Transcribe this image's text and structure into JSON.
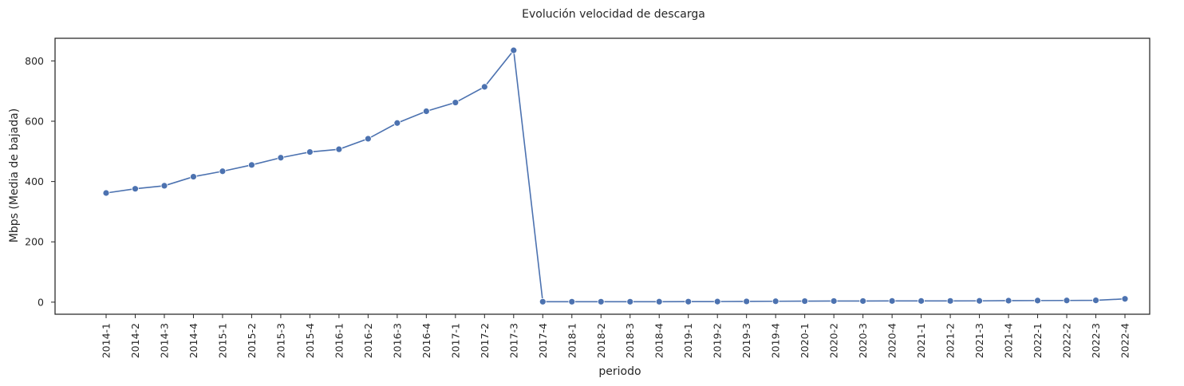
{
  "chart_data": {
    "type": "line",
    "title": "Evolución velocidad de descarga",
    "xlabel": "periodo",
    "ylabel": "Mbps (Media de bajada)",
    "ylim": [
      -40,
      875
    ],
    "yticks": [
      0,
      200,
      400,
      600,
      800
    ],
    "grid": false,
    "marker": "circle",
    "color": "#4c72b0",
    "categories": [
      "2014-1",
      "2014-2",
      "2014-3",
      "2014-4",
      "2015-1",
      "2015-2",
      "2015-3",
      "2015-4",
      "2016-1",
      "2016-2",
      "2016-3",
      "2016-4",
      "2017-1",
      "2017-2",
      "2017-3",
      "2017-4",
      "2018-1",
      "2018-2",
      "2018-3",
      "2018-4",
      "2019-1",
      "2019-2",
      "2019-3",
      "2019-4",
      "2020-1",
      "2020-2",
      "2020-3",
      "2020-4",
      "2021-1",
      "2021-2",
      "2021-3",
      "2021-4",
      "2022-1",
      "2022-2",
      "2022-3",
      "2022-4"
    ],
    "values": [
      362,
      376,
      386,
      416,
      434,
      455,
      479,
      498,
      507,
      542,
      594,
      633,
      662,
      714,
      835,
      1.5,
      1.5,
      1.5,
      1.5,
      1.6,
      1.8,
      2.0,
      2.5,
      3.0,
      3.5,
      3.7,
      3.8,
      4.0,
      4.0,
      4.1,
      4.3,
      5.0,
      5.3,
      5.6,
      6.0,
      11
    ]
  }
}
